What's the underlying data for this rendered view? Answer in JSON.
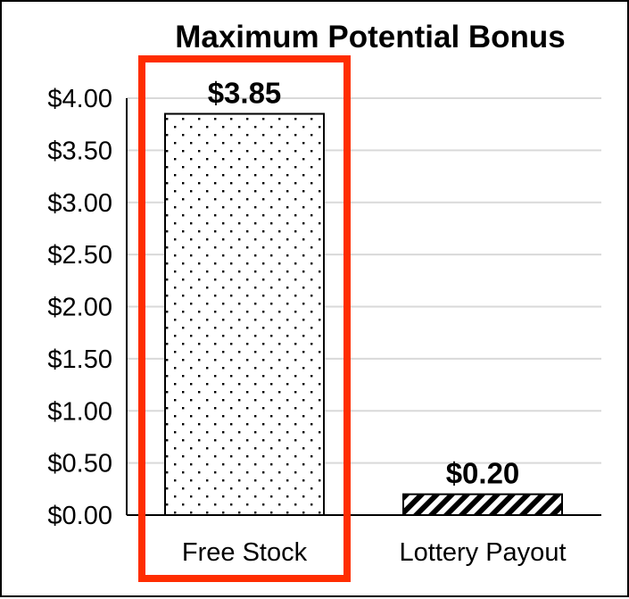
{
  "chart_data": {
    "type": "bar",
    "title": "Maximum Potential Bonus",
    "categories": [
      "Free Stock",
      "Lottery Payout"
    ],
    "values": [
      3.85,
      0.2
    ],
    "data_labels": [
      "$3.85",
      "$0.20"
    ],
    "ylim": [
      0,
      4
    ],
    "yticks": [
      0,
      0.5,
      1,
      1.5,
      2,
      2.5,
      3,
      3.5,
      4
    ],
    "ytick_labels": [
      "$0.00",
      "$0.50",
      "$1.00",
      "$1.50",
      "$2.00",
      "$2.50",
      "$3.00",
      "$3.50",
      "$4.00"
    ],
    "xlabel": "",
    "ylabel": "",
    "grid": true,
    "legend": "none",
    "bar_patterns": [
      "dots",
      "diagonal-hatch"
    ],
    "highlight": {
      "category": "Free Stock",
      "style": "outline",
      "color": "#ff2d00"
    },
    "colors": {
      "bar_fill": "#ffffff",
      "bar_outline": "#000000",
      "grid": "#d9d9d9",
      "axis": "#000000"
    }
  }
}
